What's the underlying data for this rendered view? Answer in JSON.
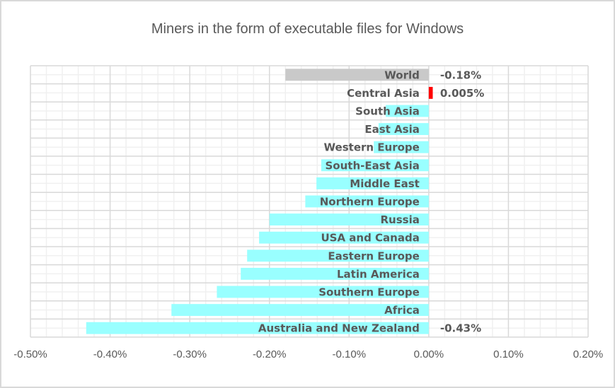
{
  "chart_data": {
    "type": "bar",
    "orientation": "horizontal",
    "title": "Miners in the form of executable files for Windows",
    "xlabel": "",
    "ylabel": "",
    "xlim": [
      -0.5,
      0.2
    ],
    "x_unit": "%",
    "x_ticks": [
      "-0.50%",
      "-0.40%",
      "-0.30%",
      "-0.20%",
      "-0.10%",
      "0.00%",
      "0.10%",
      "0.20%"
    ],
    "x_tick_values": [
      -0.5,
      -0.4,
      -0.3,
      -0.2,
      -0.1,
      0.0,
      0.1,
      0.2
    ],
    "grid": true,
    "legend": "none",
    "categories": [
      "World",
      "Central Asia",
      "South Asia",
      "East Asia",
      "Western Europe",
      "South-East Asia",
      "Middle East",
      "Northern Europe",
      "Russia",
      "USA and Canada",
      "Eastern Europe",
      "Latin America",
      "Southern Europe",
      "Africa",
      "Australia and New Zealand"
    ],
    "values": [
      -0.18,
      0.005,
      -0.054,
      -0.063,
      -0.069,
      -0.135,
      -0.141,
      -0.155,
      -0.2,
      -0.213,
      -0.228,
      -0.236,
      -0.266,
      -0.323,
      -0.43
    ],
    "bar_colors": [
      "#c9c9c9",
      "#ff0000",
      "#99ffff",
      "#99ffff",
      "#99ffff",
      "#99ffff",
      "#99ffff",
      "#99ffff",
      "#99ffff",
      "#99ffff",
      "#99ffff",
      "#99ffff",
      "#99ffff",
      "#99ffff",
      "#99ffff"
    ],
    "data_labels": [
      {
        "category": "World",
        "text": "-0.18%"
      },
      {
        "category": "Central Asia",
        "text": "0.005%"
      },
      {
        "category": "Australia and New Zealand",
        "text": "-0.43%"
      }
    ]
  }
}
